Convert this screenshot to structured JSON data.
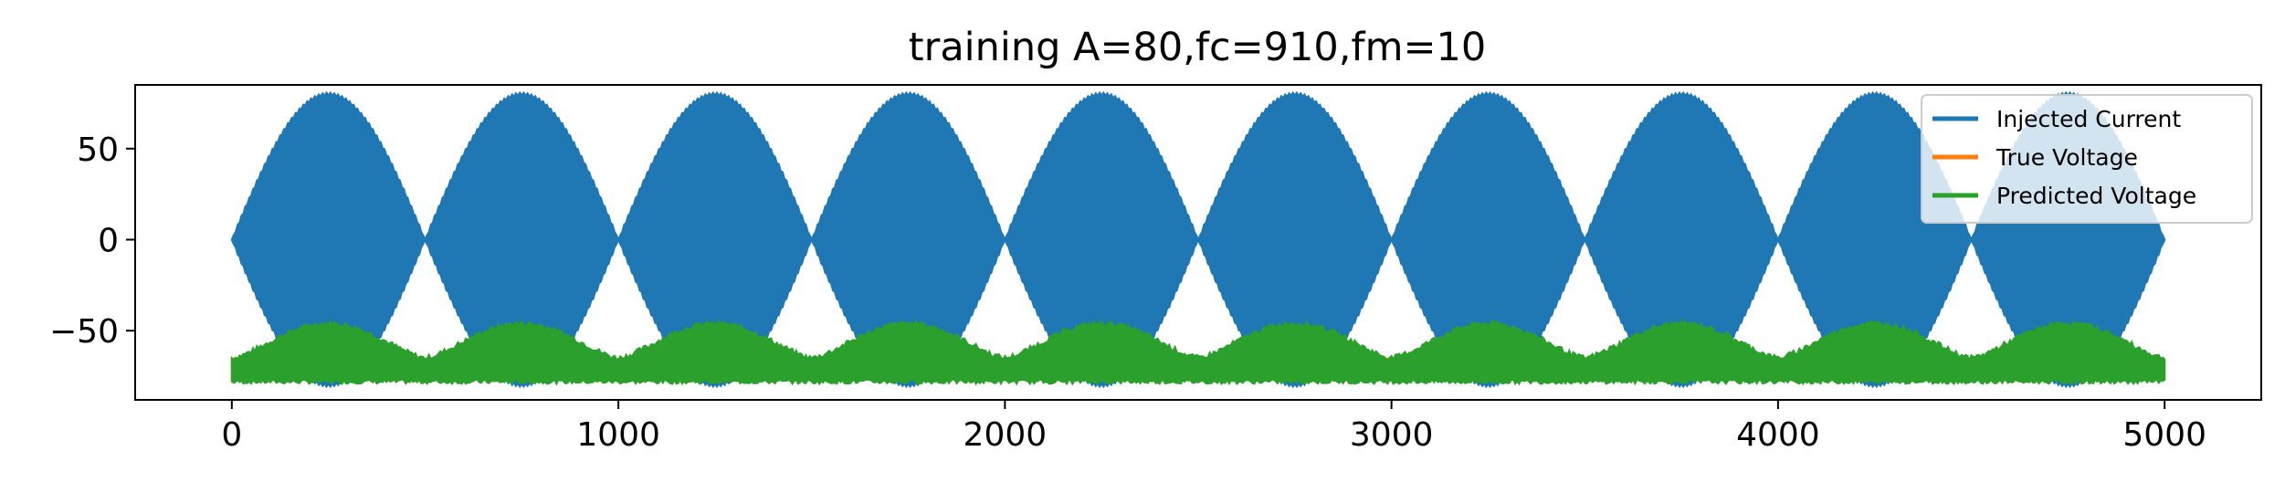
{
  "chart_data": {
    "type": "line",
    "title": "training A=80,fc=910,fm=10",
    "xlabel": "",
    "ylabel": "",
    "xlim": [
      -250,
      5250
    ],
    "ylim": [
      -88,
      85
    ],
    "xticks": [
      0,
      1000,
      2000,
      3000,
      4000,
      5000
    ],
    "xtick_labels": [
      "0",
      "1000",
      "2000",
      "3000",
      "4000",
      "5000"
    ],
    "yticks": [
      50,
      0,
      -50
    ],
    "ytick_labels": [
      "50",
      "0",
      "−50"
    ],
    "grid": false,
    "legend_position": "top-right",
    "series": [
      {
        "name": "Injected Current",
        "color": "#1f77b4",
        "signal": "am_sine",
        "amplitude": 80,
        "carrier_fc": 910,
        "modulation_fm": 10,
        "x_range": [
          0,
          5000
        ],
        "envelope_period": 500
      },
      {
        "name": "True Voltage",
        "color": "#ff7f0e",
        "signal": "membrane_response",
        "baseline": -65,
        "min": -77,
        "x_range": [
          0,
          5000
        ]
      },
      {
        "name": "Predicted Voltage",
        "color": "#2ca02c",
        "signal": "membrane_response",
        "baseline": -65,
        "peak": -46,
        "min": -78,
        "x_range": [
          0,
          5000
        ]
      }
    ]
  }
}
